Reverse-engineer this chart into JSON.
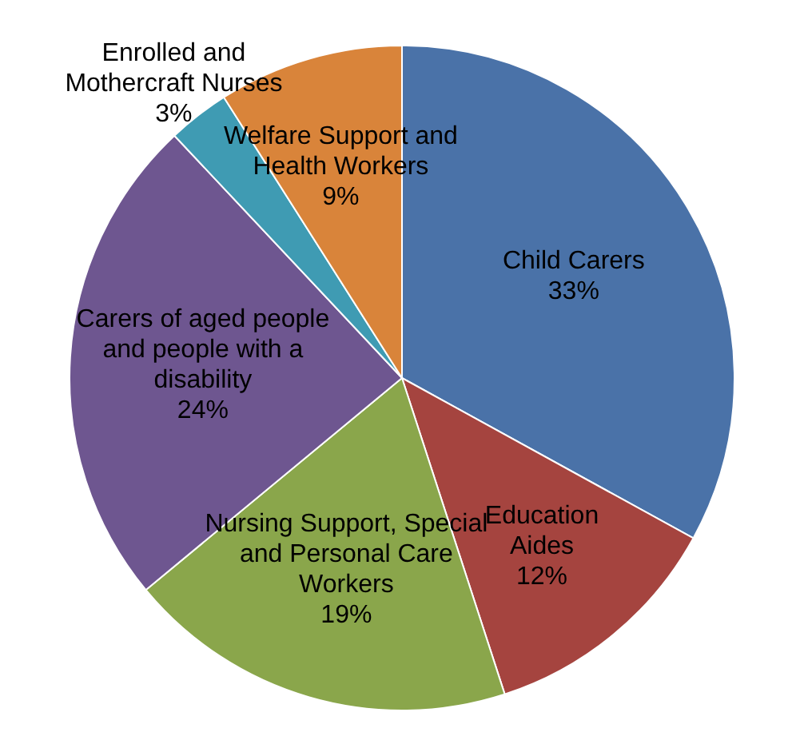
{
  "chart_data": {
    "type": "pie",
    "categories": [
      "Child Carers",
      "Education Aides",
      "Nursing Support, Special and Personal Care Workers",
      "Carers of aged people and people with a disability",
      "Enrolled and Mothercraft Nurses",
      "Welfare Support and Health Workers"
    ],
    "values": [
      33,
      12,
      19,
      24,
      3,
      9
    ],
    "colors": [
      "#4a72a8",
      "#a5443f",
      "#8aa64b",
      "#6e5690",
      "#3f9bb3",
      "#d9843a"
    ],
    "value_labels": [
      "33%",
      "12%",
      "19%",
      "24%",
      "3%",
      "9%"
    ],
    "legend": false
  }
}
